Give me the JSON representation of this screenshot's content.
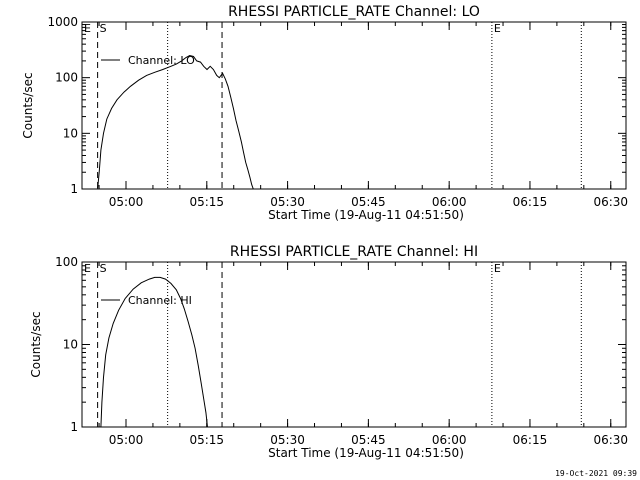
{
  "chart_data": [
    {
      "type": "line",
      "title": "RHESSI PARTICLE_RATE Channel: LO",
      "xlabel": "Start Time (19-Aug-11 04:51:50)",
      "ylabel": "Counts/sec",
      "yscale": "log",
      "ylim": [
        1,
        1000
      ],
      "xlim_minutes_after_start": [
        0,
        101
      ],
      "x_ticks": [
        {
          "label": "05:00",
          "t": 8.17
        },
        {
          "label": "05:15",
          "t": 23.17
        },
        {
          "label": "05:30",
          "t": 38.17
        },
        {
          "label": "05:45",
          "t": 53.17
        },
        {
          "label": "06:00",
          "t": 68.17
        },
        {
          "label": "06:15",
          "t": 83.17
        },
        {
          "label": "06:30",
          "t": 98.17
        }
      ],
      "y_ticks": [
        {
          "label": "1",
          "v": 1
        },
        {
          "label": "10",
          "v": 10
        },
        {
          "label": "100",
          "v": 100
        },
        {
          "label": "1000",
          "v": 1000
        }
      ],
      "legend": "Channel: LO",
      "markers": [
        {
          "label": "E",
          "t": 0,
          "style": "none"
        },
        {
          "label": "S",
          "t": 2.9,
          "style": "dashed"
        },
        {
          "label": "",
          "t": 15.9,
          "style": "dotted"
        },
        {
          "label": "",
          "t": 26.0,
          "style": "dashed"
        },
        {
          "label": "E",
          "t": 76.1,
          "style": "dotted"
        },
        {
          "label": "",
          "t": 92.7,
          "style": "dotted"
        }
      ],
      "series": [
        {
          "name": "Channel: LO",
          "points": [
            [
              2.9,
              1.0
            ],
            [
              3.2,
              2.0
            ],
            [
              3.5,
              5.0
            ],
            [
              4.0,
              10.0
            ],
            [
              4.6,
              18.0
            ],
            [
              5.5,
              28.0
            ],
            [
              6.5,
              40.0
            ],
            [
              7.8,
              55.0
            ],
            [
              9.0,
              70.0
            ],
            [
              10.5,
              90.0
            ],
            [
              12.0,
              110.0
            ],
            [
              13.5,
              125.0
            ],
            [
              15.0,
              140.0
            ],
            [
              16.5,
              160.0
            ],
            [
              17.5,
              175.0
            ],
            [
              18.5,
              200.0
            ],
            [
              19.3,
              230.0
            ],
            [
              20.0,
              250.0
            ],
            [
              20.7,
              240.0
            ],
            [
              21.3,
              200.0
            ],
            [
              22.0,
              190.0
            ],
            [
              22.6,
              160.0
            ],
            [
              23.2,
              140.0
            ],
            [
              23.8,
              160.0
            ],
            [
              24.4,
              140.0
            ],
            [
              25.0,
              110.0
            ],
            [
              25.5,
              100.0
            ],
            [
              26.1,
              120.0
            ],
            [
              26.6,
              95.0
            ],
            [
              27.1,
              70.0
            ],
            [
              27.6,
              45.0
            ],
            [
              28.1,
              28.0
            ],
            [
              28.6,
              17.0
            ],
            [
              29.1,
              11.0
            ],
            [
              29.6,
              7.0
            ],
            [
              30.0,
              4.5
            ],
            [
              30.4,
              3.0
            ],
            [
              30.8,
              2.2
            ],
            [
              31.2,
              1.6
            ],
            [
              31.5,
              1.2
            ],
            [
              31.8,
              1.0
            ]
          ]
        }
      ]
    },
    {
      "type": "line",
      "title": "RHESSI PARTICLE_RATE Channel: HI",
      "xlabel": "Start Time (19-Aug-11 04:51:50)",
      "ylabel": "Counts/sec",
      "yscale": "log",
      "ylim": [
        1,
        100
      ],
      "xlim_minutes_after_start": [
        0,
        101
      ],
      "x_ticks": [
        {
          "label": "05:00",
          "t": 8.17
        },
        {
          "label": "05:15",
          "t": 23.17
        },
        {
          "label": "05:30",
          "t": 38.17
        },
        {
          "label": "05:45",
          "t": 53.17
        },
        {
          "label": "06:00",
          "t": 68.17
        },
        {
          "label": "06:15",
          "t": 83.17
        },
        {
          "label": "06:30",
          "t": 98.17
        }
      ],
      "y_ticks": [
        {
          "label": "1",
          "v": 1
        },
        {
          "label": "10",
          "v": 10
        },
        {
          "label": "100",
          "v": 100
        }
      ],
      "legend": "Channel: HI",
      "markers": [
        {
          "label": "E",
          "t": 0,
          "style": "none"
        },
        {
          "label": "S",
          "t": 2.9,
          "style": "dashed"
        },
        {
          "label": "",
          "t": 15.9,
          "style": "dotted"
        },
        {
          "label": "",
          "t": 26.0,
          "style": "dashed"
        },
        {
          "label": "E",
          "t": 76.1,
          "style": "dotted"
        },
        {
          "label": "",
          "t": 92.7,
          "style": "dotted"
        }
      ],
      "series": [
        {
          "name": "Channel: HI",
          "points": [
            [
              3.5,
              1.0
            ],
            [
              3.7,
              2.0
            ],
            [
              4.0,
              4.0
            ],
            [
              4.4,
              7.5
            ],
            [
              5.0,
              12.0
            ],
            [
              5.8,
              18.0
            ],
            [
              6.8,
              26.0
            ],
            [
              8.0,
              36.0
            ],
            [
              9.5,
              47.0
            ],
            [
              11.0,
              56.0
            ],
            [
              12.5,
              62.0
            ],
            [
              13.5,
              65.0
            ],
            [
              14.5,
              65.0
            ],
            [
              15.5,
              62.0
            ],
            [
              16.5,
              55.0
            ],
            [
              17.5,
              46.0
            ],
            [
              18.3,
              36.0
            ],
            [
              19.0,
              27.0
            ],
            [
              19.7,
              19.0
            ],
            [
              20.4,
              13.0
            ],
            [
              21.0,
              9.0
            ],
            [
              21.6,
              5.5
            ],
            [
              22.1,
              3.5
            ],
            [
              22.6,
              2.2
            ],
            [
              23.0,
              1.5
            ],
            [
              23.3,
              1.0
            ]
          ]
        }
      ]
    }
  ],
  "timestamp": "19-Oct-2021 09:39"
}
